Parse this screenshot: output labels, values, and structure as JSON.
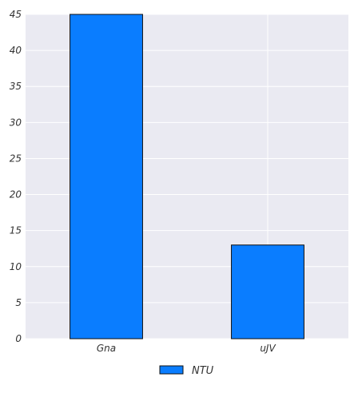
{
  "chart_data": {
    "type": "bar",
    "categories": [
      "Gna",
      "uJV"
    ],
    "series": [
      {
        "name": "NTU",
        "values": [
          45,
          13
        ]
      }
    ],
    "ylim": [
      0,
      45
    ],
    "yticks": [
      0,
      5,
      10,
      15,
      20,
      25,
      30,
      35,
      40,
      45
    ],
    "grid": true,
    "legend_position": "bottom-center",
    "colors": {
      "bar": "#0a7dff",
      "bar_edge": "#111111",
      "plot_background": "#eaeaf2",
      "grid": "#ffffff"
    }
  }
}
